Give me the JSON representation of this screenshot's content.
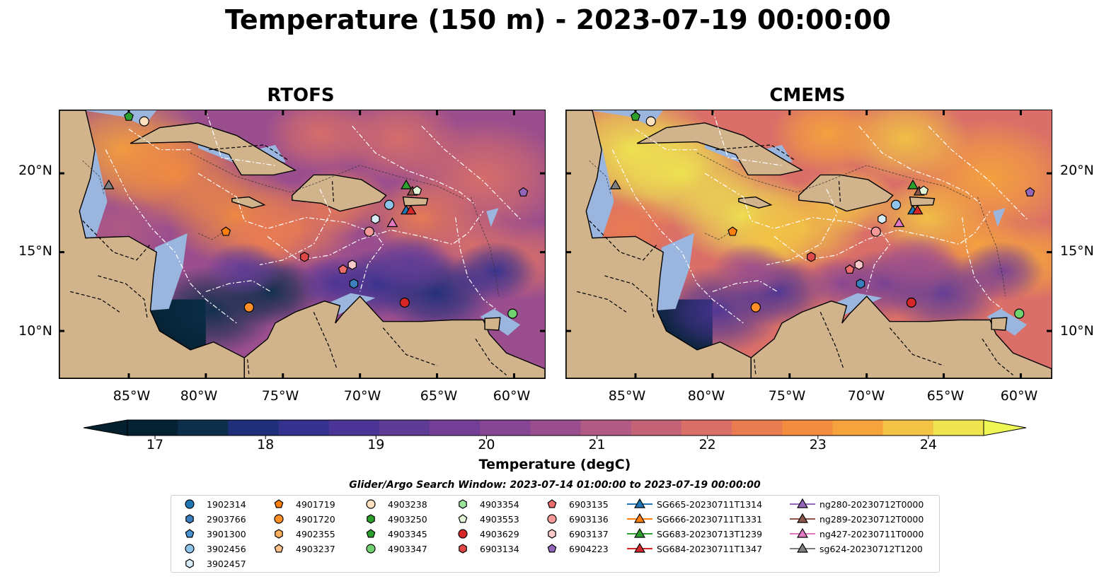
{
  "title": "Temperature (150 m) - 2023-07-19 00:00:00",
  "panels": [
    {
      "title": "RTOFS",
      "palette_shift": 0
    },
    {
      "title": "CMEMS",
      "palette_shift": 0.18
    }
  ],
  "map": {
    "lon_range": [
      -89.5,
      -58
    ],
    "lat_range": [
      7,
      24
    ],
    "lon_ticks": [
      {
        "value": -85,
        "label": "85°W"
      },
      {
        "value": -80,
        "label": "80°W"
      },
      {
        "value": -75,
        "label": "75°W"
      },
      {
        "value": -70,
        "label": "70°W"
      },
      {
        "value": -65,
        "label": "65°W"
      },
      {
        "value": -60,
        "label": "60°W"
      }
    ],
    "lat_ticks": [
      {
        "value": 20,
        "label": "20°N"
      },
      {
        "value": 15,
        "label": "15°N"
      },
      {
        "value": 10,
        "label": "10°N"
      }
    ],
    "colors": {
      "land": "#d2b48c",
      "shelf": "#9ab5de",
      "eez": "#ffffff"
    }
  },
  "colorbar": {
    "label": "Temperature (degC)",
    "min": 16.75,
    "max": 24.5,
    "ticks": [
      {
        "value": 17,
        "label": "17"
      },
      {
        "value": 18,
        "label": "18"
      },
      {
        "value": 19,
        "label": "19"
      },
      {
        "value": 20,
        "label": "20"
      },
      {
        "value": 21,
        "label": "21"
      },
      {
        "value": 22,
        "label": "22"
      },
      {
        "value": 23,
        "label": "23"
      },
      {
        "value": 24,
        "label": "24"
      }
    ],
    "colors": [
      "#052233",
      "#0c2e4a",
      "#1f2f7a",
      "#34318f",
      "#4a3495",
      "#5e3c96",
      "#733f96",
      "#874693",
      "#9a4e8e",
      "#b05a84",
      "#c46375",
      "#d96f68",
      "#ea7c52",
      "#f38c3f",
      "#f6a33d",
      "#f2c344",
      "#eee550"
    ],
    "under_color": "#04202e",
    "over_color": "#eef655"
  },
  "search_window": "Glider/Argo Search Window: 2023-07-14 01:00:00 to 2023-07-19 00:00:00",
  "legend": {
    "columns": [
      [
        {
          "label": "1902314",
          "marker": "circle",
          "color": "#1f77b4"
        },
        {
          "label": "2903766",
          "marker": "hexagon",
          "color": "#3a7fc0"
        },
        {
          "label": "3901300",
          "marker": "pentagon",
          "color": "#4a92d3"
        },
        {
          "label": "3902456",
          "marker": "circle",
          "color": "#8ec3ea"
        },
        {
          "label": "3902457",
          "marker": "hexagon",
          "color": "#d8ecf8"
        }
      ],
      [
        {
          "label": "4901719",
          "marker": "pentagon",
          "color": "#ff7f0e"
        },
        {
          "label": "4901720",
          "marker": "circle",
          "color": "#ff8f26"
        },
        {
          "label": "4902355",
          "marker": "hexagon",
          "color": "#ffb05c"
        },
        {
          "label": "4903237",
          "marker": "pentagon",
          "color": "#ffc08a"
        }
      ],
      [
        {
          "label": "4903238",
          "marker": "circle",
          "color": "#ffe0bf"
        },
        {
          "label": "4903250",
          "marker": "hexagon",
          "color": "#2ca02c"
        },
        {
          "label": "4903345",
          "marker": "pentagon",
          "color": "#2ca02c"
        },
        {
          "label": "4903347",
          "marker": "circle",
          "color": "#6fd26f"
        }
      ],
      [
        {
          "label": "4903354",
          "marker": "hexagon",
          "color": "#9be39b"
        },
        {
          "label": "4903553",
          "marker": "pentagon",
          "color": "#e2f7d8"
        },
        {
          "label": "4903629",
          "marker": "circle",
          "color": "#d62728"
        },
        {
          "label": "6903134",
          "marker": "hexagon",
          "color": "#e04848"
        }
      ],
      [
        {
          "label": "6903135",
          "marker": "pentagon",
          "color": "#ec6b6b"
        },
        {
          "label": "6903136",
          "marker": "circle",
          "color": "#f59999"
        },
        {
          "label": "6903137",
          "marker": "hexagon",
          "color": "#fbc9c9"
        },
        {
          "label": "6904223",
          "marker": "pentagon",
          "color": "#9467bd"
        }
      ],
      [
        {
          "label": "SG665-20230711T1314",
          "marker": "triangle",
          "color": "#1f77b4",
          "line": true
        },
        {
          "label": "SG666-20230711T1331",
          "marker": "triangle",
          "color": "#ff7f0e",
          "line": true
        },
        {
          "label": "SG683-20230713T1239",
          "marker": "triangle",
          "color": "#2ca02c",
          "line": true
        },
        {
          "label": "SG684-20230711T1347",
          "marker": "triangle",
          "color": "#d62728",
          "line": true
        }
      ],
      [
        {
          "label": "ng280-20230712T0000",
          "marker": "triangle",
          "color": "#9467bd",
          "line": true
        },
        {
          "label": "ng289-20230712T0000",
          "marker": "triangle",
          "color": "#8c564b",
          "line": true
        },
        {
          "label": "ng427-20230711T0000",
          "marker": "triangle",
          "color": "#e377c2",
          "line": true
        },
        {
          "label": "sg624-20230712T1200",
          "marker": "triangle",
          "color": "#7f7f7f",
          "line": true
        }
      ]
    ]
  },
  "platform_positions": [
    {
      "label": "4903345",
      "lon": -85.0,
      "lat": 23.6
    },
    {
      "label": "4903238",
      "lon": -84.0,
      "lat": 23.3
    },
    {
      "label": "sg624-20230712T1200",
      "lon": -86.3,
      "lat": 19.2
    },
    {
      "label": "4901719",
      "lon": -78.7,
      "lat": 16.3
    },
    {
      "label": "SG683-20230713T1239",
      "lon": -67.0,
      "lat": 19.2
    },
    {
      "label": "ng289-20230712T0000",
      "lon": -66.6,
      "lat": 18.8
    },
    {
      "label": "4903553",
      "lon": -66.3,
      "lat": 18.9
    },
    {
      "label": "3902456",
      "lon": -68.1,
      "lat": 18.0
    },
    {
      "label": "SG665-20230711T1314",
      "lon": -67.0,
      "lat": 17.6
    },
    {
      "label": "SG684-20230711T1347",
      "lon": -66.7,
      "lat": 17.6
    },
    {
      "label": "3902457",
      "lon": -69.0,
      "lat": 17.1
    },
    {
      "label": "ng427-20230711T0000",
      "lon": -67.9,
      "lat": 16.8
    },
    {
      "label": "6903136",
      "lon": -69.4,
      "lat": 16.3
    },
    {
      "label": "6903134",
      "lon": -73.6,
      "lat": 14.7
    },
    {
      "label": "6903137",
      "lon": -70.5,
      "lat": 14.2
    },
    {
      "label": "6903135",
      "lon": -71.1,
      "lat": 13.9
    },
    {
      "label": "2903766",
      "lon": -70.4,
      "lat": 13.0
    },
    {
      "label": "4901720",
      "lon": -77.2,
      "lat": 11.5
    },
    {
      "label": "4903629",
      "lon": -67.1,
      "lat": 11.8
    },
    {
      "label": "4903347",
      "lon": -60.1,
      "lat": 11.1
    },
    {
      "label": "6904223",
      "lon": -59.4,
      "lat": 18.8
    }
  ]
}
